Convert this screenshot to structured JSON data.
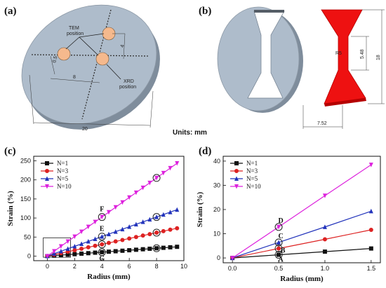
{
  "panel_a": {
    "label": "(a)",
    "tem_label": "TEM",
    "tem_label2": "position",
    "xrd_label": "XRD",
    "xrd_label2": "position",
    "dim_4": "4",
    "dim_05": "0.5",
    "dim_8": "8",
    "dim_20": "20"
  },
  "panel_b": {
    "label": "(b)",
    "dim_548": "5.48",
    "dim_18": "18",
    "dim_752": "7.52",
    "dim_r": "R5"
  },
  "units_label": "Units: mm",
  "colors": {
    "disk": "#aebccb",
    "disk_edge": "#7f8d9c",
    "red_specimen": "#ee1111",
    "tem_spot": "#f5b98d",
    "n1": "#111111",
    "n3": "#dd2222",
    "n5": "#2233bb",
    "n10": "#dd22dd"
  },
  "chart_data": [
    {
      "panel": "(c)",
      "type": "line",
      "xlabel": "Radius (mm)",
      "ylabel": "Strain (%)",
      "xlim": [
        -1,
        10
      ],
      "ylim": [
        -12,
        262
      ],
      "xticks": [
        "0",
        "2",
        "4",
        "6",
        "8",
        "10"
      ],
      "yticks": [
        "0",
        "50",
        "100",
        "150",
        "200",
        "250"
      ],
      "series": [
        {
          "name": "N=1",
          "color": "#111111",
          "marker": "square",
          "x": [
            0,
            0.5,
            1,
            1.5,
            2,
            2.5,
            3,
            3.5,
            4,
            4.5,
            5,
            5.5,
            6,
            6.5,
            7,
            7.5,
            8,
            8.5,
            9,
            9.5
          ],
          "y": [
            0,
            1.3,
            2.6,
            3.9,
            5.1,
            6.4,
            7.7,
            9,
            10.3,
            11.6,
            12.8,
            14.1,
            15.4,
            16.7,
            18,
            19.3,
            20.6,
            21.8,
            23.1,
            24.4
          ]
        },
        {
          "name": "N=3",
          "color": "#dd2222",
          "marker": "circle",
          "x": [
            0,
            0.5,
            1,
            1.5,
            2,
            2.5,
            3,
            3.5,
            4,
            4.5,
            5,
            5.5,
            6,
            6.5,
            7,
            7.5,
            8,
            8.5,
            9,
            9.5
          ],
          "y": [
            0,
            3.9,
            7.7,
            11.6,
            15.4,
            19.3,
            23.1,
            27,
            30.8,
            34.6,
            38.5,
            42.3,
            46.2,
            50,
            53.9,
            57.7,
            61.6,
            65.4,
            69.3,
            73.1
          ]
        },
        {
          "name": "N=5",
          "color": "#2233bb",
          "marker": "triangle-up",
          "x": [
            0,
            0.5,
            1,
            1.5,
            2,
            2.5,
            3,
            3.5,
            4,
            4.5,
            5,
            5.5,
            6,
            6.5,
            7,
            7.5,
            8,
            8.5,
            9,
            9.5
          ],
          "y": [
            0,
            6.4,
            12.8,
            19.3,
            25.7,
            32.1,
            38.5,
            44.9,
            51.3,
            57.7,
            64.1,
            70.5,
            77,
            83.4,
            89.8,
            96.2,
            102.6,
            109,
            115.4,
            121.8
          ]
        },
        {
          "name": "N=10",
          "color": "#dd22dd",
          "marker": "triangle-down",
          "x": [
            0,
            0.5,
            1,
            1.5,
            2,
            2.5,
            3,
            3.5,
            4,
            4.5,
            5,
            5.5,
            6,
            6.5,
            7,
            7.5,
            8,
            8.5,
            9,
            9.5
          ],
          "y": [
            0,
            12.8,
            25.7,
            38.5,
            51.3,
            64.1,
            77,
            89.8,
            102.6,
            115.4,
            128.3,
            141.1,
            153.9,
            166.7,
            179.5,
            192.4,
            205.2,
            218,
            230.9,
            243.7
          ]
        }
      ],
      "annotations": [
        {
          "text": "F",
          "x": 4,
          "y": 102.6
        },
        {
          "text": "E",
          "x": 4,
          "y": 51.3
        },
        {
          "text": "G",
          "x": 4,
          "y": 10.3
        }
      ],
      "circled_points": [
        {
          "x": 4,
          "y": 102.6
        },
        {
          "x": 8,
          "y": 205.2
        },
        {
          "x": 4,
          "y": 51.3
        },
        {
          "x": 8,
          "y": 102.6
        },
        {
          "x": 4,
          "y": 30.8
        },
        {
          "x": 8,
          "y": 61.6
        },
        {
          "x": 4,
          "y": 10.3
        },
        {
          "x": 8,
          "y": 20.6
        }
      ],
      "inset_box": {
        "x0": -0.3,
        "x1": 1.7,
        "y0": -3,
        "y1": 48
      },
      "legend": "top-left",
      "grid": false
    },
    {
      "panel": "(d)",
      "type": "line",
      "xlabel": "Radius (mm)",
      "ylabel": "Strain (%)",
      "xlim": [
        -0.1,
        1.6
      ],
      "ylim": [
        -2,
        42
      ],
      "xticks": [
        "0.0",
        "0.5",
        "1.0",
        "1.5"
      ],
      "yticks": [
        "0",
        "10",
        "20",
        "30",
        "40"
      ],
      "series": [
        {
          "name": "N=1",
          "color": "#111111",
          "marker": "square",
          "x": [
            0,
            0.5,
            1.0,
            1.5
          ],
          "y": [
            0,
            1.3,
            2.6,
            3.9
          ]
        },
        {
          "name": "N=3",
          "color": "#dd2222",
          "marker": "circle",
          "x": [
            0,
            0.5,
            1.0,
            1.5
          ],
          "y": [
            0,
            3.9,
            7.7,
            11.6
          ]
        },
        {
          "name": "N=5",
          "color": "#2233bb",
          "marker": "triangle-up",
          "x": [
            0,
            0.5,
            1.0,
            1.5
          ],
          "y": [
            0,
            6.4,
            12.8,
            19.3
          ]
        },
        {
          "name": "N=10",
          "color": "#dd22dd",
          "marker": "triangle-down",
          "x": [
            0,
            0.5,
            1.0,
            1.5
          ],
          "y": [
            0,
            12.8,
            25.7,
            38.5
          ]
        }
      ],
      "annotations": [
        {
          "text": "D",
          "x": 0.5,
          "y": 12.8
        },
        {
          "text": "C",
          "x": 0.5,
          "y": 6.4
        },
        {
          "text": "B",
          "x": 0.5,
          "y": 3.9
        },
        {
          "text": "A",
          "x": 0.5,
          "y": 1.3
        }
      ],
      "circled_points": [
        {
          "x": 0.5,
          "y": 12.8
        },
        {
          "x": 0.5,
          "y": 6.4
        },
        {
          "x": 0.5,
          "y": 3.9
        },
        {
          "x": 0.5,
          "y": 1.3
        }
      ],
      "legend": "top-left",
      "grid": false
    }
  ]
}
